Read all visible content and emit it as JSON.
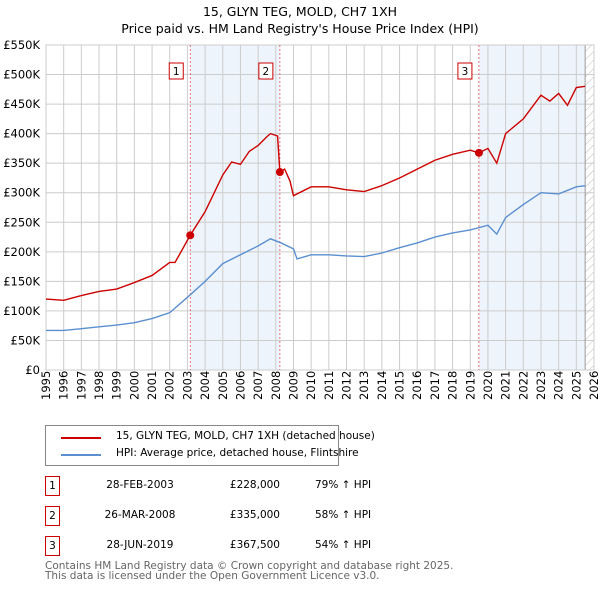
{
  "chart_data": {
    "type": "line",
    "title": "15, GLYN TEG, MOLD, CH7 1XH",
    "subtitle": "Price paid vs. HM Land Registry's House Price Index (HPI)",
    "xlim": [
      1995,
      2026
    ],
    "ylim": [
      0,
      550000
    ],
    "x_ticks": [
      "1995",
      "1996",
      "1997",
      "1998",
      "1999",
      "2000",
      "2001",
      "2002",
      "2003",
      "2004",
      "2005",
      "2006",
      "2007",
      "2008",
      "2009",
      "2010",
      "2011",
      "2012",
      "2013",
      "2014",
      "2015",
      "2016",
      "2017",
      "2018",
      "2019",
      "2020",
      "2021",
      "2022",
      "2023",
      "2024",
      "2025",
      "2026"
    ],
    "y_ticks": [
      "£0",
      "£50K",
      "£100K",
      "£150K",
      "£200K",
      "£250K",
      "£300K",
      "£350K",
      "£400K",
      "£450K",
      "£500K",
      "£550K"
    ],
    "grid": true,
    "shaded_ranges": [
      [
        2003.16,
        2008.23
      ],
      [
        2019.49,
        2025.5
      ]
    ],
    "hatched_from": 2025.5,
    "series": [
      {
        "name": "15, GLYN TEG, MOLD, CH7 1XH (detached house)",
        "color": "#cc0000",
        "x": [
          1995,
          1996,
          1997,
          1998,
          1999,
          2000,
          2001,
          2002,
          2002.3,
          2003.16,
          2004,
          2005,
          2005.5,
          2006,
          2006.5,
          2007,
          2007.5,
          2007.7,
          2008.1,
          2008.23,
          2008.5,
          2008.8,
          2009,
          2010,
          2011,
          2012,
          2013,
          2014,
          2015,
          2016,
          2017,
          2018,
          2019,
          2019.49,
          2020,
          2020.5,
          2021,
          2022,
          2023,
          2023.5,
          2024,
          2024.5,
          2025,
          2025.5
        ],
        "y": [
          120000,
          118000,
          126000,
          133000,
          137000,
          148000,
          160000,
          182000,
          182000,
          228000,
          268000,
          330000,
          352000,
          348000,
          370000,
          380000,
          395000,
          400000,
          396000,
          335000,
          340000,
          320000,
          295000,
          310000,
          310000,
          305000,
          302000,
          312000,
          325000,
          340000,
          355000,
          365000,
          372000,
          367500,
          375000,
          350000,
          400000,
          425000,
          465000,
          455000,
          468000,
          448000,
          478000,
          480000
        ]
      },
      {
        "name": "HPI: Average price, detached house, Flintshire",
        "color": "#5b8fd0",
        "x": [
          1995,
          1996,
          1997,
          1998,
          1999,
          2000,
          2001,
          2002,
          2003,
          2004,
          2005,
          2006,
          2007,
          2007.7,
          2008.3,
          2009,
          2009.2,
          2010,
          2011,
          2012,
          2013,
          2014,
          2015,
          2016,
          2017,
          2018,
          2019,
          2020,
          2020.5,
          2021,
          2022,
          2023,
          2024,
          2025,
          2025.5
        ],
        "y": [
          67000,
          67000,
          70000,
          73000,
          76000,
          80000,
          87000,
          97000,
          123000,
          150000,
          180000,
          195000,
          210000,
          222000,
          215000,
          205000,
          188000,
          195000,
          195000,
          193000,
          192000,
          198000,
          207000,
          215000,
          225000,
          232000,
          237000,
          245000,
          230000,
          258000,
          280000,
          300000,
          298000,
          310000,
          312000
        ]
      }
    ],
    "sales": [
      {
        "label": "1",
        "x": 2003.16,
        "y": 228000,
        "date": "28-FEB-2003",
        "price": "£228,000",
        "hpi": "79% ↑ HPI"
      },
      {
        "label": "2",
        "x": 2008.23,
        "y": 335000,
        "date": "26-MAR-2008",
        "price": "£335,000",
        "hpi": "58% ↑ HPI"
      },
      {
        "label": "3",
        "x": 2019.49,
        "y": 367500,
        "date": "28-JUN-2019",
        "price": "£367,500",
        "hpi": "54% ↑ HPI"
      }
    ]
  },
  "footer": {
    "line1": "Contains HM Land Registry data © Crown copyright and database right 2025.",
    "line2": "This data is licensed under the Open Government Licence v3.0."
  }
}
